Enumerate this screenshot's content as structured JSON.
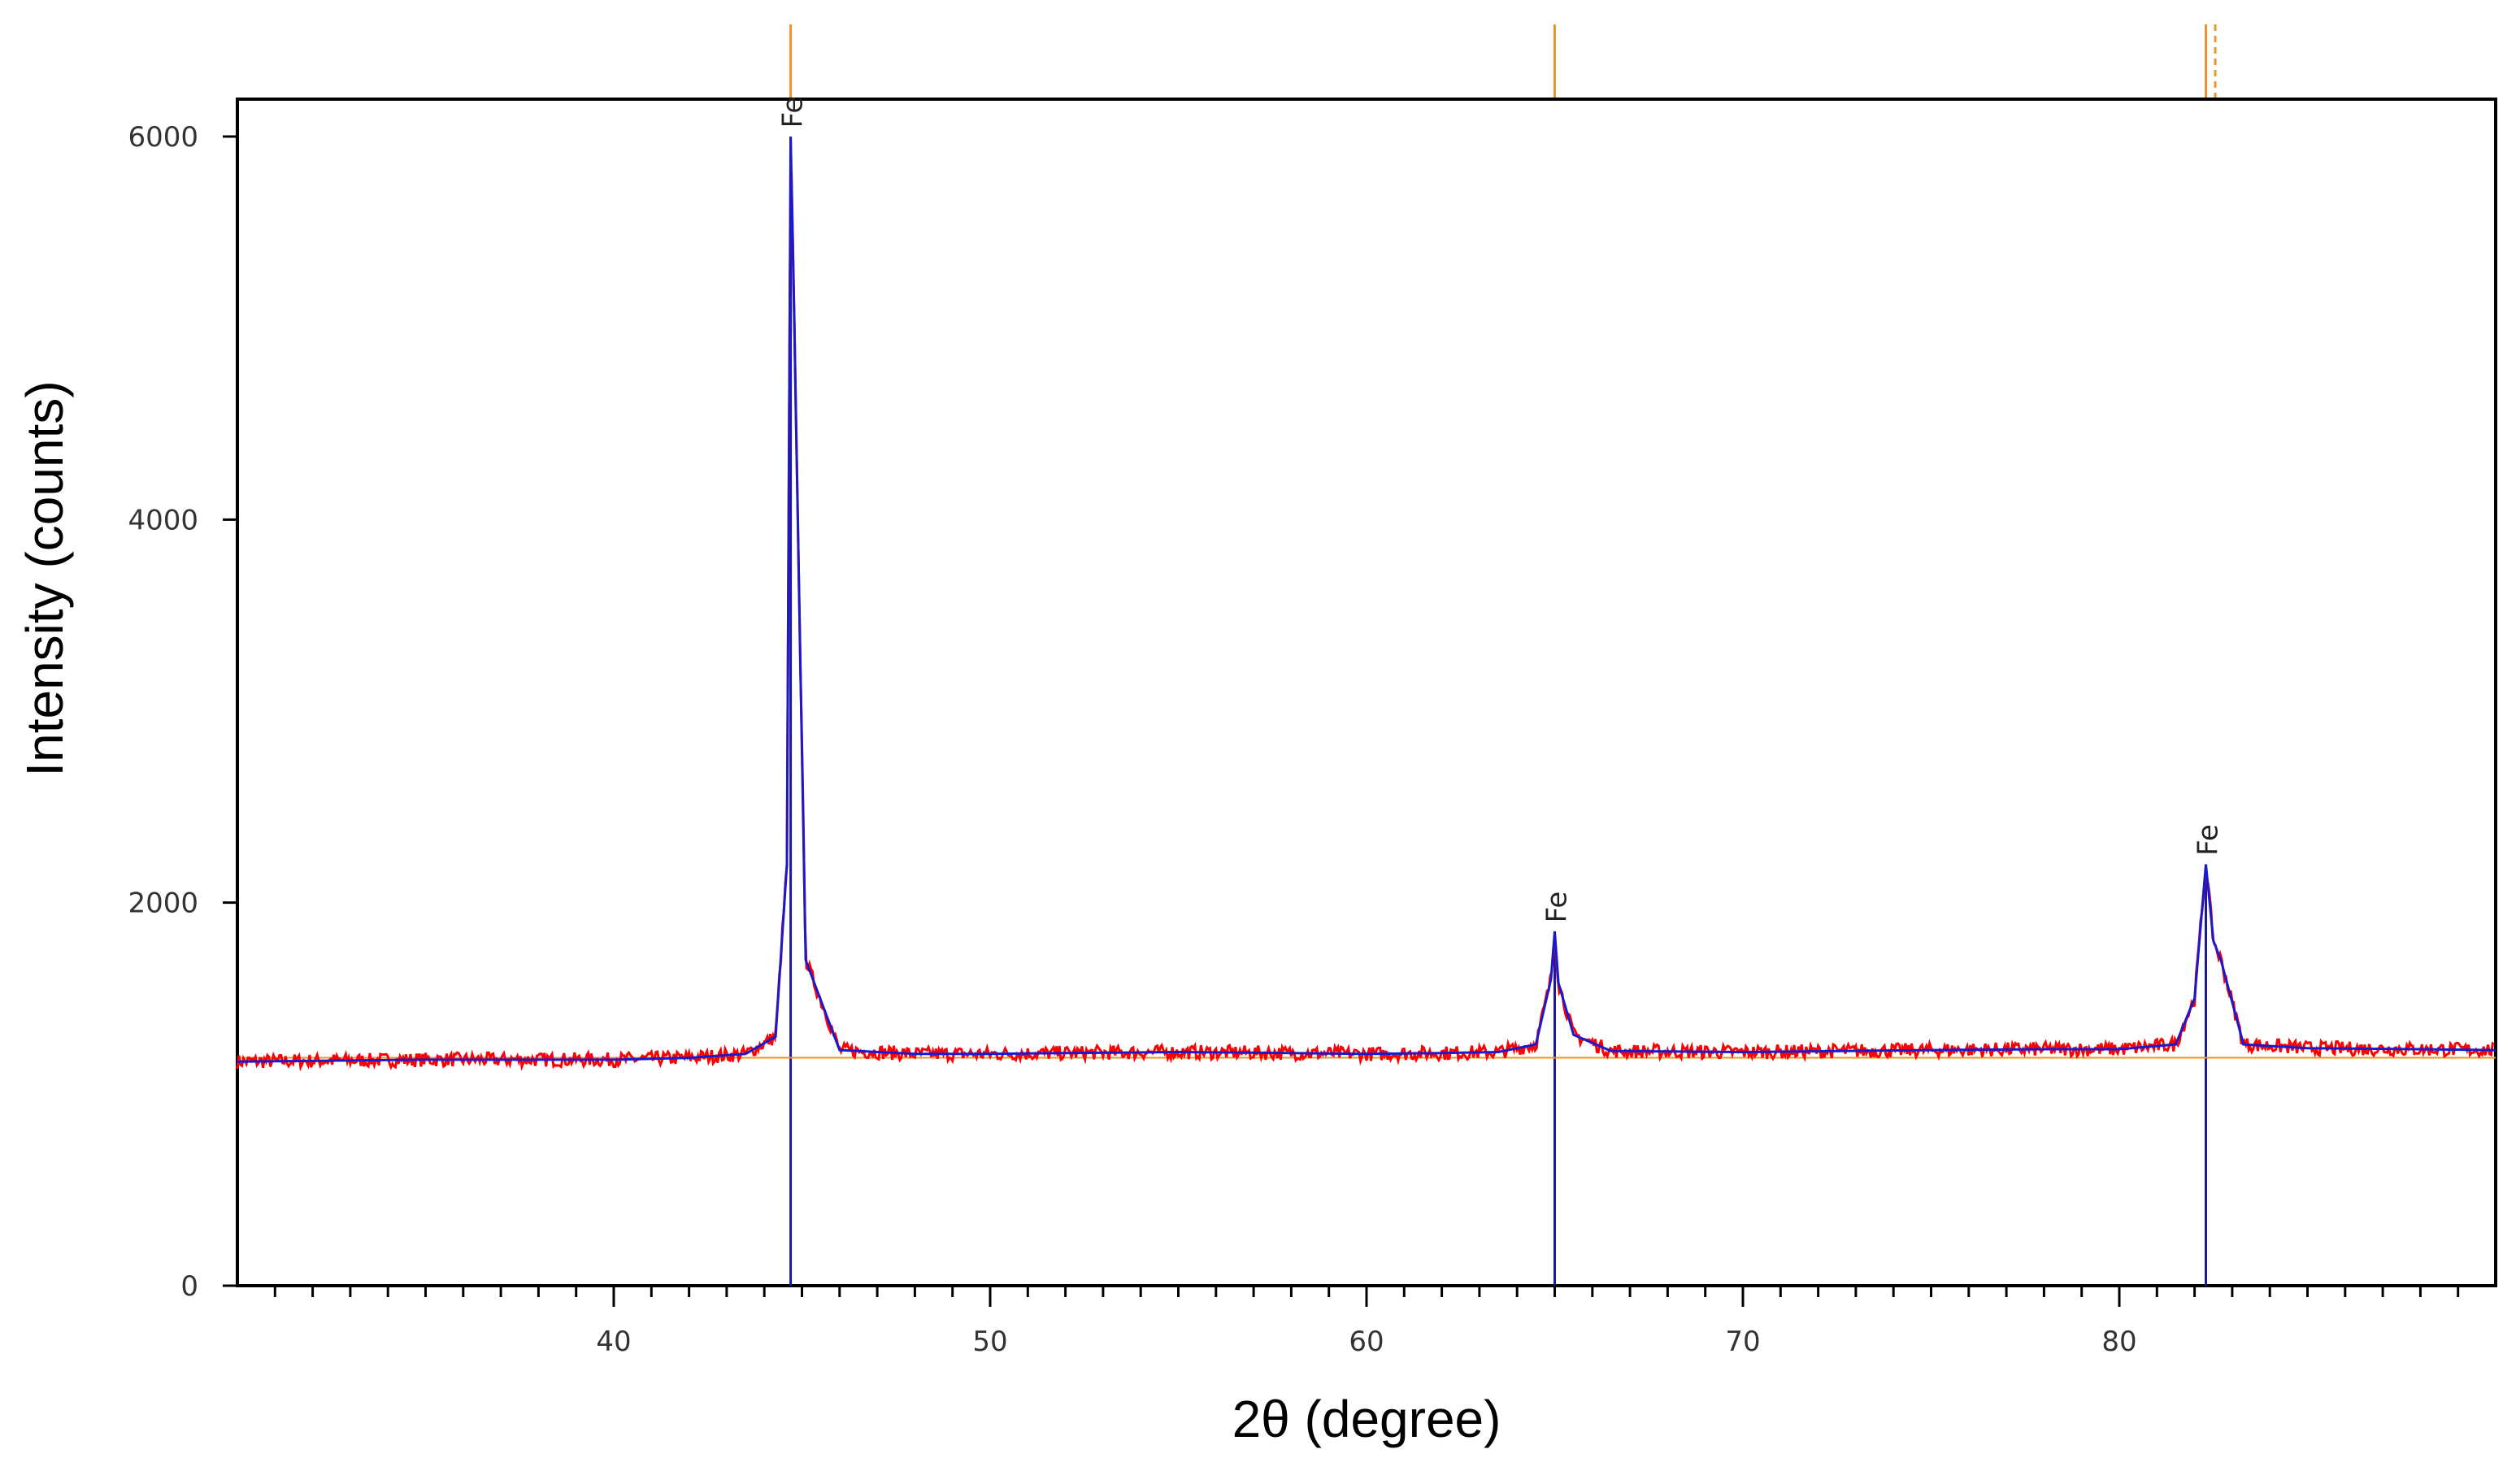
{
  "chart_data": {
    "type": "line",
    "title": "",
    "xlabel": "2θ (degree)",
    "ylabel": "Intensity (counts)",
    "xlim": [
      30,
      90
    ],
    "ylim": [
      0,
      6200
    ],
    "x_ticks": [
      40,
      50,
      60,
      70,
      80
    ],
    "x_tick_labels": [
      "40",
      "50",
      "60",
      "70",
      "80"
    ],
    "y_ticks": [
      0,
      2000,
      4000,
      6000
    ],
    "y_tick_labels": [
      "0",
      "2000",
      "4000",
      "6000"
    ],
    "grid": false,
    "legend": "none",
    "background": 1190,
    "colors": {
      "observed": "#ff0000",
      "fit": "#1a1acc",
      "reference_sticks": "#1a1a99",
      "reference_markers": "#e8962e",
      "frame": "#000000"
    },
    "peaks": [
      {
        "label": "Fe",
        "two_theta": 44.7,
        "intensity": 6000
      },
      {
        "label": "Fe",
        "two_theta": 65.0,
        "intensity": 1850
      },
      {
        "label": "Fe",
        "two_theta": 82.3,
        "intensity": 2200
      }
    ],
    "reference_sticks": [
      44.7,
      65.0,
      82.3
    ],
    "series": [
      {
        "name": "",
        "x": [
          30,
          35,
          40,
          42,
          43.5,
          44.3,
          44.6,
          44.7,
          44.8,
          45.1,
          46,
          48,
          50,
          52,
          55,
          58,
          60,
          62,
          63.5,
          64.5,
          64.9,
          65.0,
          65.1,
          65.5,
          66.5,
          70,
          75,
          78,
          80,
          81.5,
          82.0,
          82.3,
          82.5,
          82.7,
          83.3,
          85,
          88,
          90
        ],
        "y": [
          1170,
          1180,
          1180,
          1190,
          1210,
          1300,
          2200,
          6000,
          5000,
          1700,
          1230,
          1210,
          1210,
          1215,
          1220,
          1215,
          1210,
          1215,
          1220,
          1260,
          1600,
          1850,
          1580,
          1310,
          1225,
          1220,
          1230,
          1235,
          1235,
          1260,
          1500,
          2200,
          1800,
          1700,
          1260,
          1240,
          1235,
          1230
        ]
      }
    ]
  }
}
